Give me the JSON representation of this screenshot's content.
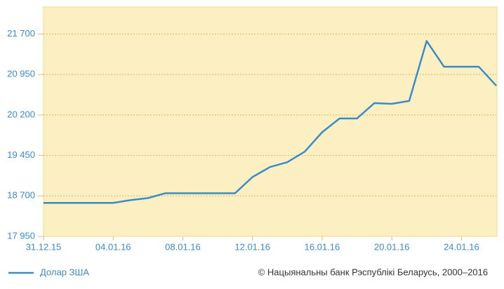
{
  "chart_data": {
    "type": "line",
    "categories": [
      "31.12.15",
      null,
      null,
      null,
      "04.01.16",
      null,
      null,
      null,
      "08.01.16",
      null,
      null,
      null,
      "12.01.16",
      null,
      null,
      null,
      "16.01.16",
      null,
      null,
      null,
      "20.01.16",
      null,
      null,
      null,
      "24.01.16",
      null,
      null
    ],
    "series": [
      {
        "name": "Долар ЗША",
        "color": "#3a8cc8",
        "values": [
          18570,
          18570,
          18570,
          18570,
          18570,
          18622,
          18660,
          18750,
          18750,
          18750,
          18750,
          18750,
          19050,
          19234,
          19325,
          19520,
          19880,
          20135,
          20135,
          20420,
          20407,
          20460,
          21570,
          21093,
          21093,
          21093,
          20742
        ]
      }
    ],
    "ylim": [
      17950,
      22200
    ],
    "yticks": [
      {
        "value": 17950,
        "label": "17 950"
      },
      {
        "value": 18700,
        "label": "18 700"
      },
      {
        "value": 19450,
        "label": "19 450"
      },
      {
        "value": 20200,
        "label": "20 200"
      },
      {
        "value": 20950,
        "label": "20 950"
      },
      {
        "value": 21700,
        "label": "21 700"
      }
    ],
    "grid": true,
    "legend": "bottom-left",
    "annotation": "© Нацыянальны банк Рэспублікі Беларусь, 2000–2016"
  }
}
